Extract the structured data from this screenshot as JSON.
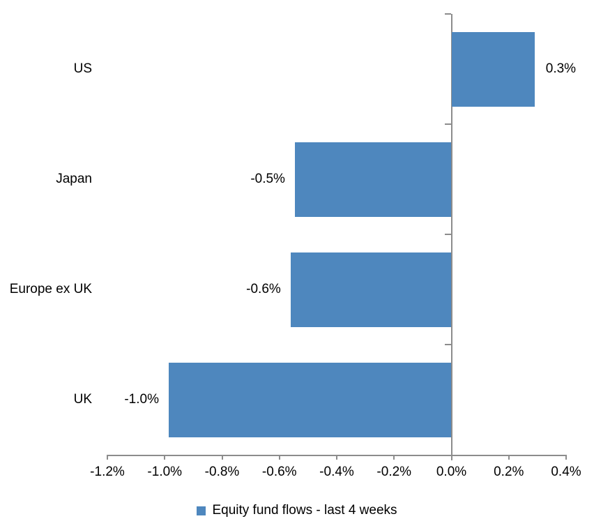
{
  "chart_data": {
    "type": "bar",
    "orientation": "horizontal",
    "categories": [
      "US",
      "Japan",
      "Europe ex UK",
      "UK"
    ],
    "values": [
      0.3,
      -0.5,
      -0.6,
      -1.0
    ],
    "bar_values_precise": [
      0.29,
      -0.546,
      -0.561,
      -0.986
    ],
    "data_labels": [
      "0.3%",
      "-0.5%",
      "-0.6%",
      "-1.0%"
    ],
    "x_ticks": [
      -1.2,
      -1.0,
      -0.8,
      -0.6,
      -0.4,
      -0.2,
      0.0,
      0.2,
      0.4
    ],
    "x_tick_labels": [
      "-1.2%",
      "-1.0%",
      "-0.8%",
      "-0.6%",
      "-0.4%",
      "-0.2%",
      "0.0%",
      "0.2%",
      "0.4%"
    ],
    "xlim": [
      -1.2,
      0.4
    ],
    "grid": false,
    "legend_position": "bottom",
    "legend": {
      "label": "Equity fund flows - last 4 weeks",
      "swatch_color": "#4E87BE"
    },
    "bar_color": "#4E87BE",
    "axis_color": "#8C8C8C",
    "text_color": "#000000"
  }
}
